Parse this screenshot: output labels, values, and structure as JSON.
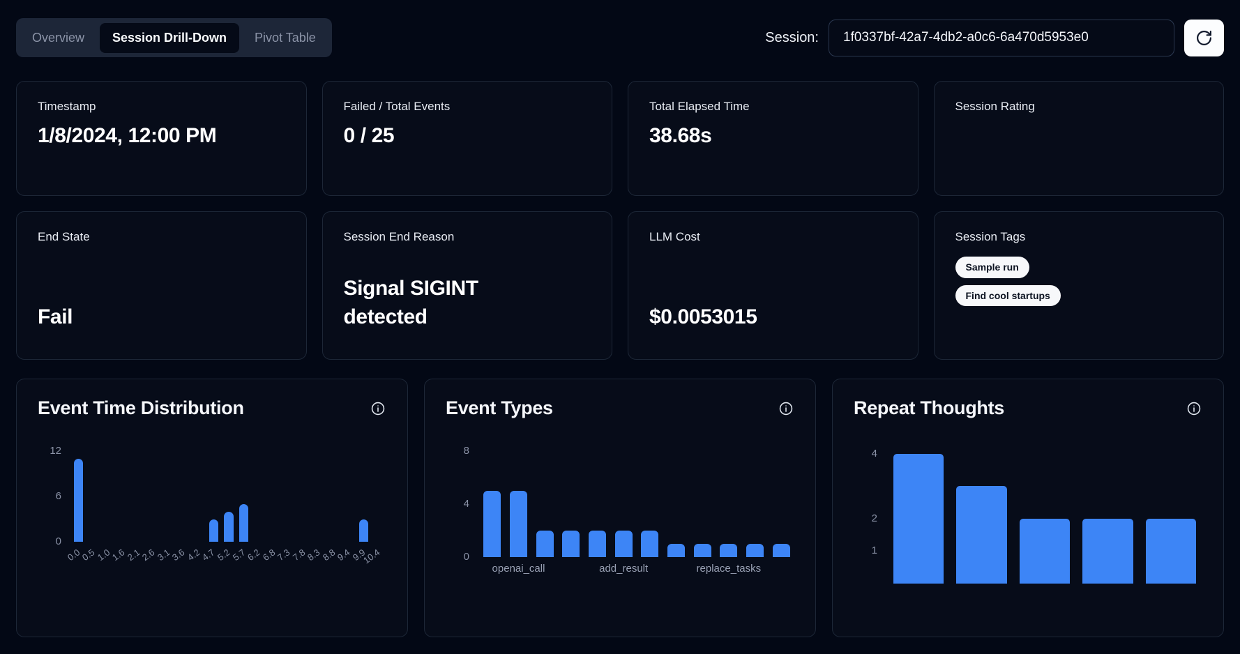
{
  "header": {
    "tabs": [
      {
        "label": "Overview",
        "active": false
      },
      {
        "label": "Session Drill-Down",
        "active": true
      },
      {
        "label": "Pivot Table",
        "active": false
      }
    ],
    "session": {
      "label": "Session:",
      "value": "1f0337bf-42a7-4db2-a0c6-6a470d5953e0"
    },
    "icons": {
      "refresh": "refresh-cw-icon"
    }
  },
  "stat_cards": [
    {
      "label": "Timestamp",
      "value": "1/8/2024, 12:00 PM"
    },
    {
      "label": "Failed / Total Events",
      "value": "0 / 25"
    },
    {
      "label": "Total Elapsed Time",
      "value": "38.68s"
    },
    {
      "label": "Session Rating",
      "value": ""
    },
    {
      "label": "End State",
      "value": "Fail"
    },
    {
      "label": "Session End Reason",
      "value": "Signal SIGINT detected"
    },
    {
      "label": "LLM Cost",
      "value": "$0.0053015"
    },
    {
      "label": "Session Tags",
      "tags": [
        "Sample run",
        "Find cool startups"
      ]
    }
  ],
  "colors": {
    "accent_blue": "#3d85f6",
    "badge_bg": "#f7f8fa",
    "badge_text": "#0b1220",
    "page_bg": "#030815",
    "card_bg": "#070c19",
    "card_border": "#1d2737",
    "muted_text": "#8a92a6"
  },
  "chart_data": [
    {
      "type": "bar",
      "title": "Event Time Distribution",
      "categories": [
        "0.0",
        "0.5",
        "1.0",
        "1.6",
        "2.1",
        "2.6",
        "3.1",
        "3.6",
        "4.2",
        "4.7",
        "5.2",
        "5.7",
        "6.2",
        "6.8",
        "7.3",
        "7.8",
        "8.3",
        "8.8",
        "9.4",
        "9.9",
        "10.4"
      ],
      "values": [
        11,
        0,
        0,
        0,
        0,
        0,
        0,
        0,
        0,
        3,
        4,
        5,
        0,
        0,
        0,
        0,
        0,
        0,
        0,
        3,
        0
      ],
      "xlabel": "",
      "ylabel": "",
      "yticks": [
        12,
        6,
        0
      ],
      "ylim": [
        0,
        12
      ],
      "grid": false,
      "legend": false,
      "bar_color": "#3d85f6"
    },
    {
      "type": "bar",
      "title": "Event Types",
      "values": [
        5,
        5,
        2,
        2,
        2,
        2,
        2,
        1,
        1,
        1,
        1,
        1
      ],
      "tick_labels": [
        {
          "index": 1,
          "label": "openai_call"
        },
        {
          "index": 5,
          "label": "add_result"
        },
        {
          "index": 9,
          "label": "replace_tasks"
        }
      ],
      "xlabel": "",
      "ylabel": "",
      "yticks": [
        8,
        4,
        0
      ],
      "ylim": [
        0,
        8
      ],
      "grid": false,
      "legend": false,
      "bar_color": "#3d85f6"
    },
    {
      "type": "bar",
      "title": "Repeat Thoughts",
      "values": [
        4,
        3,
        2,
        2,
        2
      ],
      "xlabel": "",
      "ylabel": "",
      "yticks": [
        4,
        2,
        1
      ],
      "ylim": [
        0,
        4.3
      ],
      "grid": false,
      "legend": false,
      "bar_color": "#3d85f6"
    }
  ]
}
